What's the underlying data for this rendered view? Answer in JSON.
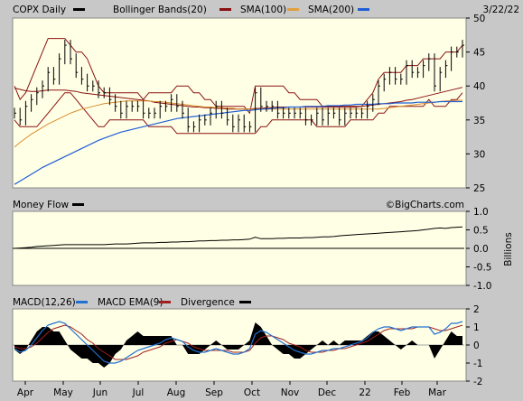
{
  "header": {
    "symbol_label": "COPX Daily",
    "bb_label": "Bollinger Bands(20)",
    "sma100_label": "SMA(100)",
    "sma200_label": "SMA(200)",
    "date_label": "3/22/22"
  },
  "watermark": "©BigCharts.com",
  "colors": {
    "panel_bg": "#ffffe6",
    "frame_bg": "#c8c8c8",
    "price": "#000000",
    "bb": "#8b1010",
    "sma100": "#8b1010",
    "sma200": "#e0a040",
    "sma200_line": "#d98c2b",
    "sma_blue": "#1f5fd6",
    "macd": "#2070d0",
    "macd_ema": "#a02020",
    "divergence": "#000000"
  },
  "months": [
    "Apr",
    "May",
    "Jun",
    "Jul",
    "Aug",
    "Sep",
    "Oct",
    "Nov",
    "Dec",
    "22",
    "Feb",
    "Mar"
  ],
  "chart_data": [
    {
      "type": "line",
      "name": "price",
      "title": "COPX Daily",
      "ylim": [
        25,
        50
      ],
      "yticks": [
        25,
        30,
        35,
        40,
        45,
        50
      ],
      "legend": [
        "Bollinger Bands(20)",
        "SMA(100)",
        "SMA(200)"
      ],
      "series": [
        {
          "name": "COPX",
          "values": [
            36,
            35,
            37,
            38,
            39,
            40,
            42,
            41,
            44,
            46,
            44,
            42,
            41,
            40,
            40,
            39,
            39,
            38,
            37,
            36,
            37,
            37,
            37,
            36,
            36,
            36,
            37,
            37,
            38,
            37,
            36,
            34,
            34,
            35,
            35,
            36,
            37,
            36,
            35,
            34,
            35,
            34,
            34,
            39,
            37,
            37,
            37,
            36,
            36,
            36,
            36,
            36,
            35,
            35,
            36,
            35,
            36,
            36,
            35,
            36,
            36,
            36,
            36,
            37,
            38,
            40,
            41,
            42,
            41,
            41,
            43,
            42,
            42,
            43,
            44,
            40,
            42,
            43,
            45,
            45,
            46
          ]
        },
        {
          "name": "Bollinger Bands(20)",
          "upper": [
            40,
            38,
            39,
            41,
            43,
            45,
            47,
            47,
            47,
            47,
            46,
            45,
            45,
            44,
            42,
            40,
            39,
            39,
            39,
            39,
            39,
            39,
            39,
            38,
            39,
            39,
            39,
            39,
            39,
            40,
            40,
            40,
            39,
            39,
            38,
            38,
            37,
            37,
            37,
            37,
            37,
            37,
            36,
            40,
            40,
            40,
            40,
            40,
            40,
            39,
            39,
            38,
            38,
            38,
            38,
            37,
            37,
            37,
            37,
            37,
            37,
            37,
            37,
            38,
            39,
            41,
            42,
            42,
            42,
            42,
            43,
            43,
            43,
            44,
            44,
            44,
            44,
            45,
            45,
            45,
            46
          ],
          "lower": [
            35,
            34,
            34,
            34,
            34,
            35,
            36,
            37,
            38,
            39,
            39,
            38,
            37,
            36,
            35,
            34,
            34,
            35,
            35,
            35,
            35,
            35,
            35,
            35,
            34,
            34,
            34,
            34,
            34,
            33,
            33,
            33,
            33,
            33,
            33,
            33,
            33,
            33,
            33,
            33,
            33,
            33,
            33,
            33,
            34,
            34,
            35,
            35,
            35,
            35,
            35,
            35,
            35,
            35,
            34,
            34,
            34,
            34,
            34,
            34,
            35,
            35,
            35,
            35,
            35,
            36,
            36,
            37,
            37,
            37,
            37,
            37,
            37,
            37,
            38,
            37,
            37,
            37,
            38,
            38,
            39
          ]
        },
        {
          "name": "SMA(100)",
          "values": [
            39.7,
            39.5,
            39.3,
            39.2,
            39.2,
            39.3,
            39.4,
            39.4,
            39.4,
            39.4,
            39.3,
            39.2,
            39.0,
            38.9,
            38.8,
            38.7,
            38.6,
            38.5,
            38.4,
            38.3,
            38.2,
            38.1,
            38.0,
            37.9,
            37.8,
            37.6,
            37.5,
            37.4,
            37.3,
            37.2,
            37.1,
            37.0,
            36.9,
            36.9,
            36.8,
            36.8,
            36.7,
            36.7,
            36.6,
            36.6,
            36.6,
            36.6,
            36.6,
            36.7,
            36.7,
            36.8,
            36.8,
            36.9,
            36.9,
            36.9,
            36.9,
            36.9,
            36.9,
            36.9,
            36.9,
            36.9,
            36.9,
            36.9,
            36.9,
            36.9,
            36.9,
            36.9,
            37.0,
            37.1,
            37.2,
            37.3,
            37.4,
            37.5,
            37.6,
            37.7,
            37.9,
            38.0,
            38.2,
            38.4,
            38.6,
            38.8,
            39.0,
            39.2,
            39.4,
            39.6,
            39.8
          ]
        },
        {
          "name": "SMA(200)",
          "values": [
            31.0,
            31.7,
            32.3,
            32.9,
            33.4,
            33.9,
            34.4,
            34.8,
            35.2,
            35.6,
            36.0,
            36.3,
            36.6,
            36.8,
            37.0,
            37.2,
            37.4,
            37.5,
            37.6,
            37.7,
            37.8,
            37.8,
            37.8,
            37.8,
            37.8,
            37.7,
            37.7,
            37.6,
            37.5,
            37.4,
            37.3,
            37.2,
            37.1,
            37.0,
            36.9,
            36.9,
            36.8,
            36.8,
            36.7,
            36.7,
            36.6,
            36.6,
            36.6,
            36.6,
            36.6,
            36.6,
            36.6,
            36.6,
            36.6,
            36.6,
            36.6,
            36.6,
            36.6,
            36.6,
            36.6,
            36.6,
            36.6,
            36.6,
            36.6,
            36.6,
            36.6,
            36.6,
            36.6,
            36.6,
            36.6,
            36.6,
            36.7,
            36.8,
            36.9,
            37.0,
            37.1,
            37.2,
            37.3,
            37.4,
            37.5,
            37.6,
            37.7,
            37.8,
            37.8,
            37.9,
            37.9
          ]
        },
        {
          "name": "SMA(200) blue",
          "values": [
            25.5,
            26.0,
            26.5,
            27.0,
            27.5,
            28.0,
            28.4,
            28.8,
            29.2,
            29.6,
            30.0,
            30.4,
            30.8,
            31.2,
            31.6,
            32.0,
            32.3,
            32.6,
            32.9,
            33.2,
            33.4,
            33.6,
            33.8,
            34.0,
            34.2,
            34.4,
            34.6,
            34.8,
            35.0,
            35.2,
            35.3,
            35.4,
            35.5,
            35.6,
            35.7,
            35.8,
            35.9,
            36.0,
            36.1,
            36.2,
            36.3,
            36.4,
            36.4,
            36.5,
            36.6,
            36.6,
            36.7,
            36.8,
            36.8,
            36.9,
            36.9,
            36.9,
            37.0,
            37.0,
            37.0,
            37.0,
            37.1,
            37.1,
            37.1,
            37.2,
            37.2,
            37.3,
            37.3,
            37.3,
            37.3,
            37.4,
            37.4,
            37.4,
            37.5,
            37.5,
            37.5,
            37.5,
            37.6,
            37.6,
            37.6,
            37.6,
            37.7,
            37.7,
            37.7,
            37.7,
            37.7
          ]
        }
      ]
    },
    {
      "type": "line",
      "name": "money-flow",
      "title": "Money Flow",
      "ylabel": "Billions",
      "ylim": [
        -1.0,
        1.0
      ],
      "yticks": [
        1.0,
        0.5,
        0.0,
        -0.5,
        -1.0
      ],
      "ytick_labels": [
        "1.0",
        "0.5",
        "0.0",
        "-0.5",
        "-1.0"
      ],
      "series": [
        {
          "name": "Money Flow",
          "values": [
            0.0,
            0.01,
            0.02,
            0.03,
            0.05,
            0.06,
            0.07,
            0.08,
            0.09,
            0.1,
            0.1,
            0.1,
            0.1,
            0.1,
            0.1,
            0.1,
            0.1,
            0.11,
            0.12,
            0.12,
            0.12,
            0.13,
            0.14,
            0.15,
            0.15,
            0.15,
            0.16,
            0.16,
            0.17,
            0.17,
            0.18,
            0.18,
            0.19,
            0.2,
            0.2,
            0.21,
            0.21,
            0.22,
            0.22,
            0.23,
            0.23,
            0.24,
            0.25,
            0.3,
            0.26,
            0.26,
            0.26,
            0.27,
            0.27,
            0.28,
            0.28,
            0.28,
            0.29,
            0.29,
            0.3,
            0.31,
            0.31,
            0.32,
            0.34,
            0.35,
            0.36,
            0.37,
            0.38,
            0.39,
            0.4,
            0.41,
            0.42,
            0.43,
            0.44,
            0.45,
            0.46,
            0.47,
            0.48,
            0.5,
            0.52,
            0.54,
            0.55,
            0.54,
            0.56,
            0.57,
            0.58
          ]
        }
      ]
    },
    {
      "type": "line",
      "name": "macd",
      "title": "MACD(12,26)",
      "legend": [
        "MACD EMA(9)",
        "Divergence"
      ],
      "ylim": [
        -2,
        2
      ],
      "yticks": [
        2,
        1,
        0,
        -1,
        -2
      ],
      "series": [
        {
          "name": "MACD(12,26)",
          "values": [
            -0.2,
            -0.4,
            -0.3,
            0.0,
            0.4,
            0.8,
            1.1,
            1.2,
            1.3,
            1.2,
            0.9,
            0.6,
            0.3,
            0.0,
            -0.3,
            -0.6,
            -0.9,
            -1.0,
            -1.0,
            -0.9,
            -0.7,
            -0.5,
            -0.3,
            -0.2,
            -0.1,
            0.0,
            0.1,
            0.3,
            0.4,
            0.3,
            0.2,
            -0.1,
            -0.3,
            -0.4,
            -0.4,
            -0.3,
            -0.2,
            -0.3,
            -0.4,
            -0.5,
            -0.5,
            -0.4,
            -0.2,
            0.6,
            0.8,
            0.7,
            0.5,
            0.3,
            0.1,
            -0.1,
            -0.3,
            -0.4,
            -0.5,
            -0.5,
            -0.4,
            -0.3,
            -0.3,
            -0.2,
            -0.2,
            -0.1,
            0.0,
            0.1,
            0.2,
            0.4,
            0.7,
            0.9,
            1.0,
            1.0,
            0.9,
            0.8,
            0.9,
            1.0,
            1.0,
            1.0,
            1.0,
            0.6,
            0.7,
            0.9,
            1.2,
            1.2,
            1.3
          ]
        },
        {
          "name": "MACD EMA(9)",
          "values": [
            -0.1,
            -0.2,
            -0.2,
            -0.1,
            0.1,
            0.4,
            0.7,
            0.9,
            1.0,
            1.1,
            1.0,
            0.8,
            0.6,
            0.3,
            0.1,
            -0.2,
            -0.4,
            -0.6,
            -0.8,
            -0.8,
            -0.8,
            -0.7,
            -0.6,
            -0.4,
            -0.3,
            -0.2,
            -0.1,
            0.1,
            0.2,
            0.3,
            0.2,
            0.1,
            -0.1,
            -0.2,
            -0.3,
            -0.3,
            -0.3,
            -0.3,
            -0.3,
            -0.4,
            -0.4,
            -0.4,
            -0.3,
            0.1,
            0.4,
            0.5,
            0.5,
            0.4,
            0.3,
            0.1,
            0.0,
            -0.1,
            -0.3,
            -0.4,
            -0.4,
            -0.4,
            -0.3,
            -0.3,
            -0.2,
            -0.2,
            -0.1,
            0.0,
            0.1,
            0.2,
            0.4,
            0.6,
            0.8,
            0.9,
            0.9,
            0.9,
            0.9,
            0.9,
            1.0,
            1.0,
            1.0,
            0.9,
            0.8,
            0.8,
            0.9,
            1.0,
            1.1
          ]
        }
      ]
    }
  ]
}
